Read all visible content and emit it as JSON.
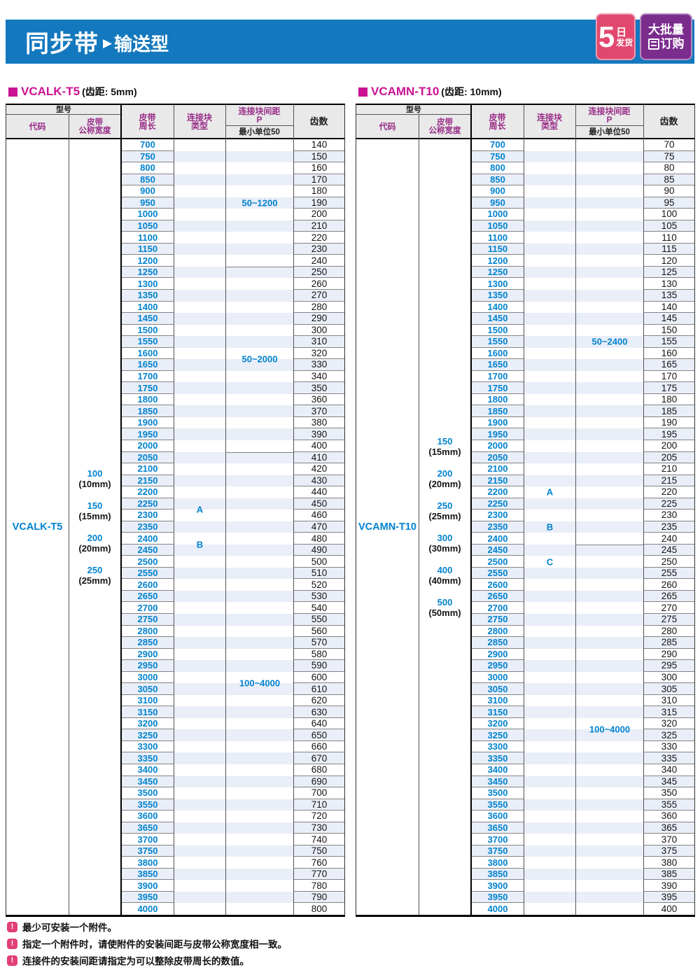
{
  "banner": {
    "title_main": "同步带",
    "arrow": "▶",
    "title_sub": "输送型",
    "badge_ship": {
      "big": "5",
      "top": "日",
      "bottom": "发货"
    },
    "badge_bulk": {
      "line1": "大批量",
      "line2": "订购"
    }
  },
  "colors": {
    "banner_blue": "#1478be",
    "header_magenta": "#992d88",
    "title_magenta": "#cb1292",
    "value_blue": "#0082cf",
    "row_stripe": "#e9eef8",
    "badge_pink": "#e2486f",
    "badge_purple": "#7b2d8e",
    "warning_pink": "#e23f75"
  },
  "tables": [
    {
      "title_model": "VCALK-T5",
      "title_pitch": "(齿距: 5mm)",
      "headers": {
        "model_group": "型号",
        "code": "代码",
        "width_l1": "皮带",
        "width_l2": "公称宽度",
        "belt_l1": "皮带",
        "belt_l2": "周长",
        "type_l1": "连接块",
        "type_l2": "类型",
        "p_l1": "连接块间距",
        "p_l2": "P",
        "p_min": "最小单位50",
        "teeth": "齿数"
      },
      "code": "VCALK-T5",
      "widths": [
        {
          "value": "100",
          "mm": "(10mm)"
        },
        {
          "value": "150",
          "mm": "(15mm)"
        },
        {
          "value": "200",
          "mm": "(20mm)"
        },
        {
          "value": "250",
          "mm": "(25mm)"
        }
      ],
      "belt_lengths": [
        700,
        750,
        800,
        850,
        900,
        950,
        1000,
        1050,
        1100,
        1150,
        1200,
        1250,
        1300,
        1350,
        1400,
        1450,
        1500,
        1550,
        1600,
        1650,
        1700,
        1750,
        1800,
        1850,
        1900,
        1950,
        2000,
        2050,
        2100,
        2150,
        2200,
        2250,
        2300,
        2350,
        2400,
        2450,
        2500,
        2550,
        2600,
        2650,
        2700,
        2750,
        2800,
        2850,
        2900,
        2950,
        3000,
        3050,
        3100,
        3150,
        3200,
        3250,
        3300,
        3350,
        3400,
        3450,
        3500,
        3550,
        3600,
        3650,
        3700,
        3750,
        3800,
        3850,
        3900,
        3950,
        4000
      ],
      "teeth": [
        140,
        150,
        160,
        170,
        180,
        190,
        200,
        210,
        220,
        230,
        240,
        250,
        260,
        270,
        280,
        290,
        300,
        310,
        320,
        330,
        340,
        350,
        360,
        370,
        380,
        390,
        400,
        410,
        420,
        430,
        440,
        450,
        460,
        470,
        480,
        490,
        500,
        510,
        520,
        530,
        540,
        550,
        560,
        570,
        580,
        590,
        600,
        610,
        620,
        630,
        640,
        650,
        660,
        670,
        680,
        690,
        700,
        710,
        720,
        730,
        740,
        750,
        760,
        770,
        780,
        790,
        800
      ],
      "p_sections": [
        {
          "label": "50~1200",
          "from": 700,
          "to": 1200
        },
        {
          "label": "50~2000",
          "from": 1250,
          "to": 2000
        },
        {
          "label": "100~4000",
          "from": 2050,
          "to": 4000
        }
      ],
      "block_types": [
        {
          "type": "A",
          "belts": [
            2250,
            2300
          ]
        },
        {
          "type": "B",
          "belts": [
            2400,
            2450
          ]
        }
      ]
    },
    {
      "title_model": "VCAMN-T10",
      "title_pitch": "(齿距: 10mm)",
      "headers": {
        "model_group": "型号",
        "code": "代码",
        "width_l1": "皮带",
        "width_l2": "公称宽度",
        "belt_l1": "皮带",
        "belt_l2": "周长",
        "type_l1": "连接块",
        "type_l2": "类型",
        "p_l1": "连接块间距",
        "p_l2": "P",
        "p_min": "最小单位50",
        "teeth": "齿数"
      },
      "code": "VCAMN-T10",
      "widths": [
        {
          "value": "150",
          "mm": "(15mm)"
        },
        {
          "value": "200",
          "mm": "(20mm)"
        },
        {
          "value": "250",
          "mm": "(25mm)"
        },
        {
          "value": "300",
          "mm": "(30mm)"
        },
        {
          "value": "400",
          "mm": "(40mm)"
        },
        {
          "value": "500",
          "mm": "(50mm)"
        }
      ],
      "belt_lengths": [
        700,
        750,
        800,
        850,
        900,
        950,
        1000,
        1050,
        1100,
        1150,
        1200,
        1250,
        1300,
        1350,
        1400,
        1450,
        1500,
        1550,
        1600,
        1650,
        1700,
        1750,
        1800,
        1850,
        1900,
        1950,
        2000,
        2050,
        2100,
        2150,
        2200,
        2250,
        2300,
        2350,
        2400,
        2450,
        2500,
        2550,
        2600,
        2650,
        2700,
        2750,
        2800,
        2850,
        2900,
        2950,
        3000,
        3050,
        3100,
        3150,
        3200,
        3250,
        3300,
        3350,
        3400,
        3450,
        3500,
        3550,
        3600,
        3650,
        3700,
        3750,
        3800,
        3850,
        3900,
        3950,
        4000
      ],
      "teeth": [
        70,
        75,
        80,
        85,
        90,
        95,
        100,
        105,
        110,
        115,
        120,
        125,
        130,
        135,
        140,
        145,
        150,
        155,
        160,
        165,
        170,
        175,
        180,
        185,
        190,
        195,
        200,
        205,
        210,
        215,
        220,
        225,
        230,
        235,
        240,
        245,
        250,
        255,
        260,
        265,
        270,
        275,
        280,
        285,
        290,
        295,
        300,
        305,
        310,
        315,
        320,
        325,
        330,
        335,
        340,
        345,
        350,
        355,
        360,
        365,
        370,
        375,
        380,
        385,
        390,
        395,
        400
      ],
      "p_sections": [
        {
          "label": "50~2400",
          "from": 700,
          "to": 2400
        },
        {
          "label": "100~4000",
          "from": 2450,
          "to": 4000
        }
      ],
      "block_types": [
        {
          "type": "A",
          "belts": [
            2200
          ]
        },
        {
          "type": "B",
          "belts": [
            2350
          ]
        },
        {
          "type": "C",
          "belts": [
            2500
          ]
        }
      ]
    }
  ],
  "notes": [
    "最少可安装一个附件。",
    "指定一个附件时，请使附件的安装间距与皮带公称宽度相一致。",
    "连接件的安装间距请指定为可以整除皮带周长的数值。"
  ]
}
